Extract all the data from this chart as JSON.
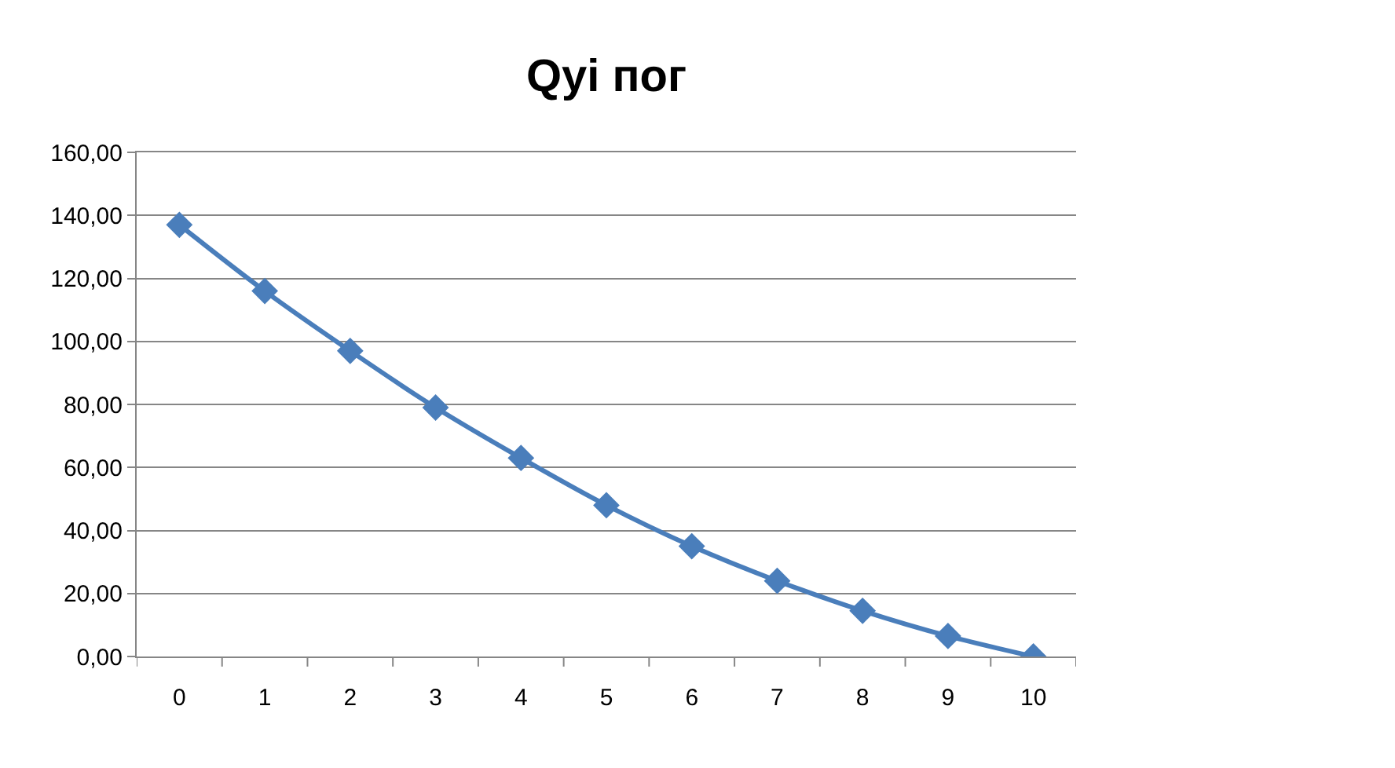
{
  "chart_data": {
    "type": "line",
    "title": "Qyi пoг",
    "categories": [
      "0",
      "1",
      "2",
      "3",
      "4",
      "5",
      "6",
      "7",
      "8",
      "9",
      "10"
    ],
    "series": [
      {
        "color": "#4a7ebb",
        "values": [
          137,
          116,
          97,
          79,
          63,
          48,
          35,
          24,
          14.5,
          6.5,
          0
        ]
      }
    ],
    "ylim": [
      0,
      160
    ],
    "yticks": [
      {
        "value": 0,
        "label": "0,00"
      },
      {
        "value": 20,
        "label": "20,00"
      },
      {
        "value": 40,
        "label": "40,00"
      },
      {
        "value": 60,
        "label": "60,00"
      },
      {
        "value": 80,
        "label": "80,00"
      },
      {
        "value": 100,
        "label": "100,00"
      },
      {
        "value": 120,
        "label": "120,00"
      },
      {
        "value": 140,
        "label": "140,00"
      },
      {
        "value": 160,
        "label": "160,00"
      }
    ],
    "grid": "y",
    "marker": "diamond",
    "line_style": "solid"
  }
}
